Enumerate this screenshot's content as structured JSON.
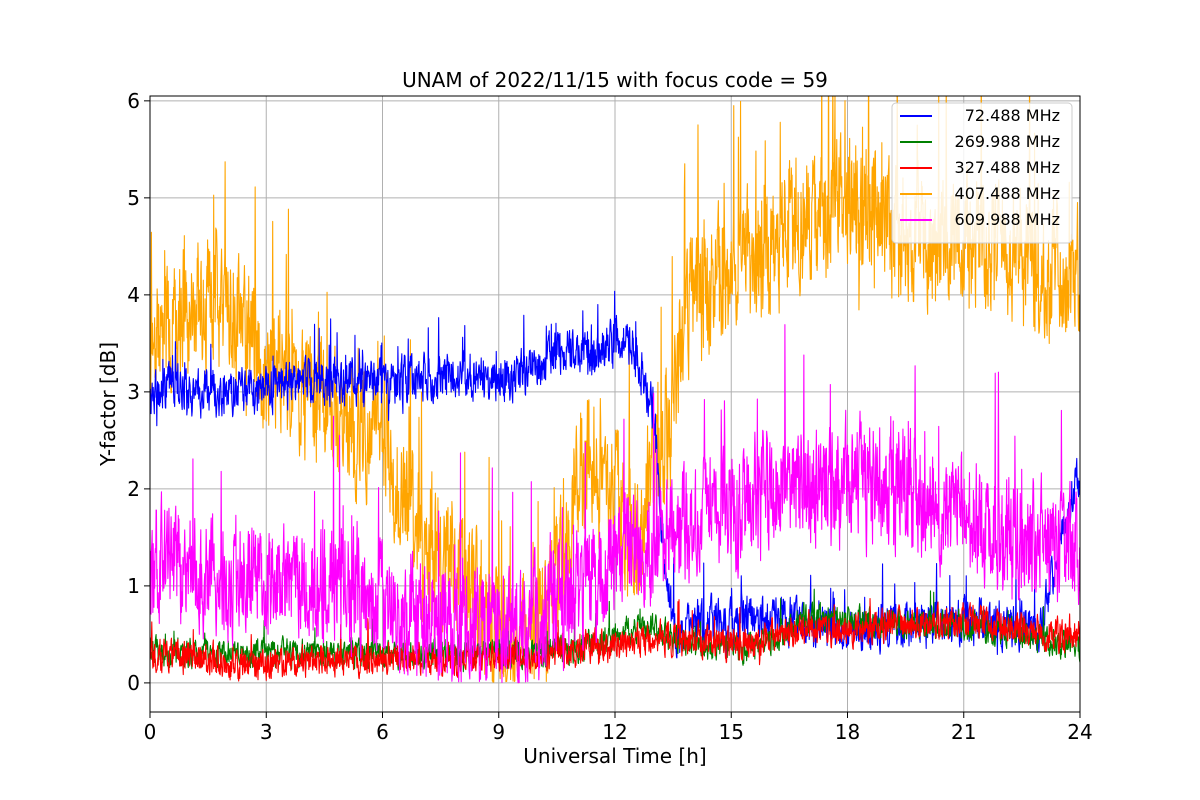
{
  "chart_data": {
    "type": "line",
    "title": "UNAM of 2022/11/15 with focus code = 59",
    "xlabel": "Universal Time [h]",
    "ylabel": "Y-factor [dB]",
    "xlim": [
      0,
      24
    ],
    "ylim": [
      -0.3,
      6.05
    ],
    "xticks": [
      0,
      3,
      6,
      9,
      12,
      15,
      18,
      21,
      24
    ],
    "yticks": [
      0,
      1,
      2,
      3,
      4,
      5,
      6
    ],
    "grid": true,
    "legend_position": "top-right",
    "series": [
      {
        "name": "72.488 MHz",
        "color": "#0000ff",
        "draw_order": 1,
        "noise": 0.35,
        "spikes": 0.05,
        "x": [
          0,
          0.5,
          1,
          2,
          3,
          4,
          5,
          6,
          7,
          8,
          9,
          10,
          10.5,
          11,
          11.5,
          12,
          12.5,
          13,
          13.2,
          13.5,
          14,
          15,
          16,
          17,
          18,
          19,
          20,
          21,
          22,
          23,
          23.8,
          24
        ],
        "y": [
          2.9,
          3.1,
          3.0,
          3.0,
          3.0,
          3.1,
          3.1,
          3.1,
          3.15,
          3.2,
          3.1,
          3.25,
          3.4,
          3.45,
          3.4,
          3.5,
          3.45,
          2.8,
          1.5,
          0.5,
          0.6,
          0.65,
          0.7,
          0.6,
          0.55,
          0.6,
          0.6,
          0.65,
          0.6,
          0.6,
          2.0,
          2.2
        ]
      },
      {
        "name": "269.988 MHz",
        "color": "#008000",
        "draw_order": 2,
        "noise": 0.22,
        "spikes": 0.03,
        "x": [
          0,
          2,
          4,
          6,
          8,
          9,
          10,
          11,
          12,
          13,
          14,
          15,
          16,
          17,
          18,
          19,
          20,
          21,
          22,
          23,
          24
        ],
        "y": [
          0.3,
          0.3,
          0.3,
          0.3,
          0.3,
          0.3,
          0.3,
          0.35,
          0.5,
          0.55,
          0.4,
          0.35,
          0.4,
          0.7,
          0.65,
          0.6,
          0.6,
          0.6,
          0.55,
          0.45,
          0.4
        ]
      },
      {
        "name": "327.488 MHz",
        "color": "#ff0000",
        "draw_order": 3,
        "noise": 0.25,
        "spikes": 0.02,
        "x": [
          0,
          1,
          2,
          3,
          4,
          5,
          6,
          7,
          8,
          9,
          10,
          11,
          12,
          13,
          14,
          15,
          16,
          17,
          18,
          19,
          20,
          21,
          22,
          23,
          24
        ],
        "y": [
          0.3,
          0.25,
          0.2,
          0.2,
          0.22,
          0.25,
          0.25,
          0.25,
          0.25,
          0.25,
          0.3,
          0.35,
          0.4,
          0.45,
          0.45,
          0.4,
          0.45,
          0.55,
          0.55,
          0.6,
          0.6,
          0.65,
          0.6,
          0.5,
          0.5
        ]
      },
      {
        "name": "407.488 MHz",
        "color": "#ffa500",
        "draw_order": 0,
        "noise": 1.0,
        "spikes": 0.07,
        "x": [
          0,
          0.5,
          1,
          1.5,
          2,
          3,
          4,
          5,
          6,
          6.5,
          7,
          8,
          9,
          10,
          10.5,
          11,
          11.5,
          12,
          12.5,
          13,
          13.3,
          13.7,
          14,
          15,
          16,
          17,
          18,
          19,
          20,
          21,
          22,
          23,
          24
        ],
        "y": [
          3.4,
          3.7,
          3.9,
          4.0,
          3.8,
          3.3,
          3.0,
          2.8,
          2.5,
          2.0,
          1.5,
          1.2,
          0.5,
          0.6,
          1.0,
          2.0,
          2.5,
          2.0,
          1.5,
          2.0,
          2.6,
          3.6,
          4.1,
          4.2,
          4.5,
          4.8,
          4.9,
          4.8,
          4.5,
          4.6,
          4.5,
          4.3,
          4.2
        ]
      },
      {
        "name": "609.988 MHz",
        "color": "#ff00ff",
        "draw_order": 4,
        "noise": 0.9,
        "spikes": 0.05,
        "x": [
          0,
          1,
          2,
          3,
          4,
          5,
          6,
          7,
          8,
          9,
          10,
          11,
          12,
          13,
          14,
          15,
          16,
          17,
          18,
          19,
          20,
          21,
          22,
          23,
          24
        ],
        "y": [
          1.3,
          1.2,
          1.1,
          1.1,
          1.0,
          1.0,
          0.8,
          0.7,
          0.6,
          0.5,
          0.6,
          0.9,
          1.3,
          1.5,
          1.6,
          1.8,
          2.0,
          2.0,
          2.0,
          2.1,
          1.9,
          1.8,
          1.5,
          1.4,
          1.4
        ]
      }
    ]
  }
}
